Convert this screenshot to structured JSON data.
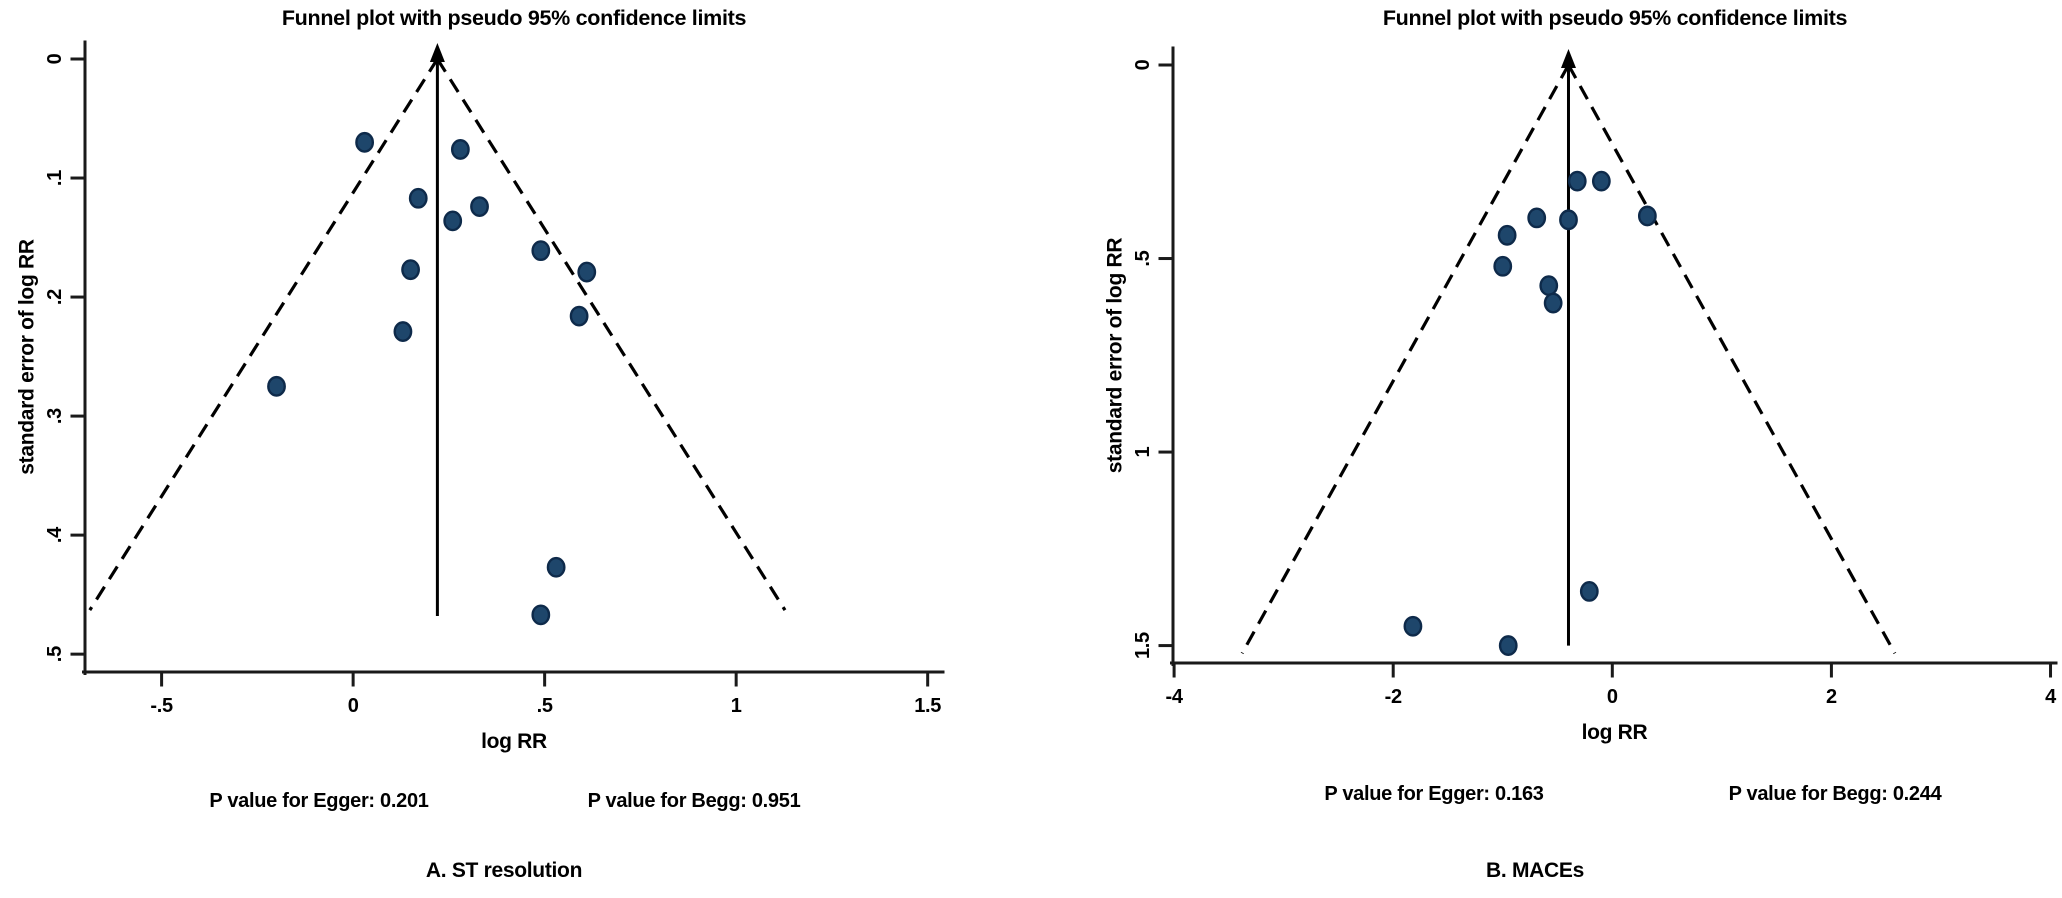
{
  "styles": {
    "background": "#ffffff",
    "point_fill": "#1e466b",
    "point_stroke": "#0e2a4a",
    "line_color": "#000000"
  },
  "chart_data": [
    {
      "panel_id": "A",
      "type": "scatter",
      "chart_kind": "funnel_plot",
      "title": "Funnel plot with pseudo 95% confidence limits",
      "xlabel": "log RR",
      "ylabel": "standard error of log RR",
      "xlim": [
        -0.7,
        1.54
      ],
      "ylim": [
        0,
        0.515
      ],
      "y_axis_inverted_downward": true,
      "grid": false,
      "legend": "none",
      "x_ticks": [
        {
          "v": -0.5,
          "label": "-.5"
        },
        {
          "v": 0,
          "label": "0"
        },
        {
          "v": 0.5,
          "label": ".5"
        },
        {
          "v": 1,
          "label": "1"
        },
        {
          "v": 1.5,
          "label": "1.5"
        }
      ],
      "y_ticks": [
        {
          "v": 0,
          "label": "0"
        },
        {
          "v": 0.1,
          "label": ".1"
        },
        {
          "v": 0.2,
          "label": ".2"
        },
        {
          "v": 0.3,
          "label": ".3"
        },
        {
          "v": 0.4,
          "label": ".4"
        },
        {
          "v": 0.5,
          "label": ".5"
        }
      ],
      "pooled_log_rr": 0.22,
      "pooled_line_se_end": 0.468,
      "funnel_se_end": 0.463,
      "ci_multiplier": 1.96,
      "points": [
        [
          0.03,
          0.07
        ],
        [
          0.28,
          0.076
        ],
        [
          0.17,
          0.117
        ],
        [
          0.33,
          0.124
        ],
        [
          0.26,
          0.136
        ],
        [
          0.49,
          0.161
        ],
        [
          0.15,
          0.177
        ],
        [
          0.61,
          0.179
        ],
        [
          0.59,
          0.216
        ],
        [
          0.13,
          0.229
        ],
        [
          -0.2,
          0.275
        ],
        [
          0.53,
          0.427
        ],
        [
          0.49,
          0.467
        ]
      ],
      "annotations": {
        "egger": "P value for Egger: 0.201",
        "begg": "P value for Begg: 0.951"
      },
      "caption": "A. ST resolution"
    },
    {
      "panel_id": "B",
      "type": "scatter",
      "chart_kind": "funnel_plot",
      "title": "Funnel plot with pseudo 95% confidence limits",
      "xlabel": "log RR",
      "ylabel": "standard error of log RR",
      "xlim": [
        -4.01,
        4.05
      ],
      "ylim": [
        0,
        1.545
      ],
      "y_axis_inverted_downward": true,
      "grid": false,
      "legend": "none",
      "x_ticks": [
        {
          "v": -4,
          "label": "-4"
        },
        {
          "v": -2,
          "label": "-2"
        },
        {
          "v": 0,
          "label": "0"
        },
        {
          "v": 2,
          "label": "2"
        },
        {
          "v": 4,
          "label": "4"
        }
      ],
      "y_ticks": [
        {
          "v": 0,
          "label": "0"
        },
        {
          "v": 0.5,
          "label": ".5"
        },
        {
          "v": 1,
          "label": "1"
        },
        {
          "v": 1.5,
          "label": "1.5"
        }
      ],
      "pooled_log_rr": -0.4,
      "pooled_line_se_end": 1.5,
      "funnel_se_end": 1.52,
      "ci_multiplier": 1.96,
      "points": [
        [
          -0.32,
          0.3
        ],
        [
          -0.1,
          0.3
        ],
        [
          -0.69,
          0.395
        ],
        [
          -0.4,
          0.4
        ],
        [
          0.32,
          0.39
        ],
        [
          -0.96,
          0.44
        ],
        [
          -1.0,
          0.52
        ],
        [
          -0.58,
          0.57
        ],
        [
          -0.54,
          0.615
        ],
        [
          -0.21,
          1.36
        ],
        [
          -1.82,
          1.45
        ],
        [
          -0.95,
          1.5
        ]
      ],
      "annotations": {
        "egger": "P value for Egger: 0.163",
        "begg": "P value for Begg: 0.244"
      },
      "caption": "B. MACEs"
    }
  ]
}
